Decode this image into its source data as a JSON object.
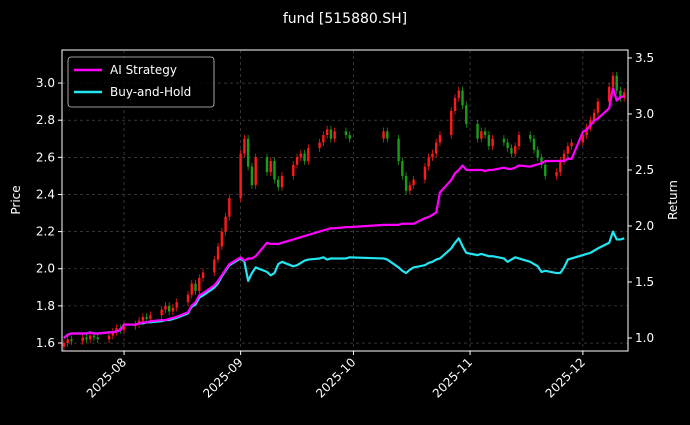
{
  "chart_data": {
    "type": "candlestick",
    "title": "fund [515880.SH]",
    "ylabel": "Price",
    "y2label": "Return",
    "x": [
      0,
      1,
      2,
      5,
      6,
      7,
      8,
      9,
      12,
      13,
      14,
      15,
      16,
      19,
      20,
      21,
      22,
      23,
      26,
      27,
      28,
      29,
      30,
      33,
      34,
      35,
      36,
      37,
      40,
      41,
      42,
      43,
      44,
      47,
      48,
      49,
      50,
      51,
      54,
      55,
      56,
      57,
      58,
      61,
      62,
      63,
      64,
      65,
      68,
      69,
      70,
      71,
      72,
      75,
      76,
      85,
      86,
      89,
      90,
      91,
      92,
      93,
      96,
      97,
      98,
      99,
      100,
      103,
      104,
      105,
      106,
      107,
      110,
      111,
      112,
      113,
      114,
      117,
      118,
      119,
      120,
      121,
      124,
      125,
      126,
      127,
      128,
      131,
      132,
      133,
      134,
      135,
      138,
      139,
      140,
      141,
      142,
      145,
      146,
      147,
      148,
      149
    ],
    "open": [
      1.58,
      1.6,
      1.62,
      1.61,
      1.63,
      1.62,
      1.64,
      1.63,
      1.62,
      1.64,
      1.66,
      1.68,
      1.67,
      1.69,
      1.7,
      1.72,
      1.74,
      1.73,
      1.75,
      1.78,
      1.8,
      1.77,
      1.79,
      1.82,
      1.86,
      1.92,
      1.88,
      1.95,
      1.98,
      2.05,
      2.12,
      2.2,
      2.28,
      2.38,
      2.62,
      2.7,
      2.55,
      2.45,
      2.6,
      2.52,
      2.58,
      2.48,
      2.44,
      2.5,
      2.56,
      2.6,
      2.62,
      2.58,
      2.65,
      2.68,
      2.72,
      2.75,
      2.7,
      2.74,
      2.72,
      2.7,
      2.74,
      2.7,
      2.58,
      2.5,
      2.42,
      2.45,
      2.48,
      2.55,
      2.6,
      2.62,
      2.68,
      2.72,
      2.85,
      2.92,
      2.96,
      2.88,
      2.78,
      2.7,
      2.74,
      2.72,
      2.66,
      2.7,
      2.68,
      2.65,
      2.62,
      2.66,
      2.72,
      2.7,
      2.64,
      2.6,
      2.56,
      2.5,
      2.52,
      2.58,
      2.62,
      2.66,
      2.68,
      2.72,
      2.76,
      2.8,
      2.84,
      2.9,
      2.98,
      3.04,
      2.96,
      2.92
    ],
    "high": [
      1.62,
      1.64,
      1.64,
      1.65,
      1.65,
      1.66,
      1.66,
      1.65,
      1.66,
      1.68,
      1.7,
      1.7,
      1.71,
      1.72,
      1.74,
      1.76,
      1.76,
      1.77,
      1.8,
      1.82,
      1.82,
      1.81,
      1.84,
      1.88,
      1.94,
      1.94,
      1.97,
      2.0,
      2.07,
      2.14,
      2.22,
      2.3,
      2.4,
      2.64,
      2.72,
      2.72,
      2.57,
      2.62,
      2.62,
      2.6,
      2.6,
      2.5,
      2.52,
      2.58,
      2.62,
      2.64,
      2.64,
      2.67,
      2.7,
      2.74,
      2.77,
      2.77,
      2.76,
      2.76,
      2.74,
      2.76,
      2.76,
      2.72,
      2.6,
      2.52,
      2.47,
      2.5,
      2.57,
      2.62,
      2.64,
      2.7,
      2.74,
      2.87,
      2.94,
      2.98,
      2.98,
      2.9,
      2.8,
      2.76,
      2.76,
      2.74,
      2.72,
      2.72,
      2.7,
      2.67,
      2.68,
      2.74,
      2.74,
      2.72,
      2.66,
      2.62,
      2.58,
      2.54,
      2.6,
      2.64,
      2.68,
      2.7,
      2.74,
      2.78,
      2.82,
      2.86,
      2.92,
      3.0,
      3.06,
      3.06,
      2.98,
      2.97
    ],
    "low": [
      1.56,
      1.58,
      1.59,
      1.59,
      1.6,
      1.6,
      1.61,
      1.6,
      1.6,
      1.62,
      1.64,
      1.65,
      1.65,
      1.67,
      1.68,
      1.7,
      1.71,
      1.71,
      1.73,
      1.76,
      1.75,
      1.75,
      1.77,
      1.8,
      1.84,
      1.86,
      1.86,
      1.93,
      1.96,
      2.03,
      2.1,
      2.18,
      2.26,
      2.36,
      2.6,
      2.53,
      2.43,
      2.43,
      2.5,
      2.5,
      2.46,
      2.42,
      2.42,
      2.48,
      2.54,
      2.58,
      2.56,
      2.56,
      2.63,
      2.66,
      2.7,
      2.68,
      2.68,
      2.7,
      2.68,
      2.68,
      2.68,
      2.56,
      2.48,
      2.4,
      2.4,
      2.43,
      2.46,
      2.53,
      2.58,
      2.6,
      2.66,
      2.7,
      2.83,
      2.9,
      2.86,
      2.76,
      2.68,
      2.68,
      2.7,
      2.64,
      2.64,
      2.66,
      2.63,
      2.6,
      2.6,
      2.64,
      2.68,
      2.62,
      2.58,
      2.54,
      2.48,
      2.48,
      2.5,
      2.56,
      2.6,
      2.64,
      2.66,
      2.7,
      2.74,
      2.78,
      2.82,
      2.88,
      2.96,
      2.94,
      2.9,
      2.9
    ],
    "close": [
      1.6,
      1.62,
      1.61,
      1.63,
      1.62,
      1.64,
      1.63,
      1.62,
      1.64,
      1.66,
      1.68,
      1.67,
      1.69,
      1.7,
      1.72,
      1.74,
      1.73,
      1.75,
      1.78,
      1.8,
      1.77,
      1.79,
      1.82,
      1.86,
      1.92,
      1.88,
      1.95,
      1.98,
      2.05,
      2.12,
      2.2,
      2.28,
      2.38,
      2.62,
      2.7,
      2.55,
      2.45,
      2.6,
      2.52,
      2.58,
      2.48,
      2.44,
      2.5,
      2.56,
      2.6,
      2.62,
      2.58,
      2.65,
      2.68,
      2.72,
      2.75,
      2.7,
      2.74,
      2.72,
      2.7,
      2.74,
      2.7,
      2.58,
      2.5,
      2.42,
      2.45,
      2.48,
      2.55,
      2.6,
      2.62,
      2.68,
      2.72,
      2.85,
      2.92,
      2.96,
      2.88,
      2.78,
      2.7,
      2.74,
      2.72,
      2.66,
      2.7,
      2.68,
      2.65,
      2.62,
      2.66,
      2.72,
      2.7,
      2.64,
      2.6,
      2.56,
      2.5,
      2.52,
      2.58,
      2.62,
      2.66,
      2.68,
      2.72,
      2.76,
      2.8,
      2.84,
      2.9,
      2.98,
      3.04,
      2.96,
      2.92,
      2.95
    ],
    "up_color": "#ff1a1a",
    "down_color": "#1a9e1a",
    "series": [
      {
        "name": "AI Strategy",
        "color": "#ff00ff",
        "axis": "y2",
        "values": [
          1.0,
          1.03,
          1.04,
          1.04,
          1.04,
          1.05,
          1.04,
          1.04,
          1.05,
          1.05,
          1.06,
          1.07,
          1.12,
          1.12,
          1.13,
          1.14,
          1.14,
          1.15,
          1.16,
          1.16,
          1.17,
          1.18,
          1.19,
          1.23,
          1.29,
          1.32,
          1.38,
          1.4,
          1.47,
          1.51,
          1.56,
          1.61,
          1.66,
          1.72,
          1.69,
          1.71,
          1.71,
          1.73,
          1.85,
          1.84,
          1.84,
          1.84,
          1.85,
          1.88,
          1.89,
          1.9,
          1.91,
          1.92,
          1.95,
          1.96,
          1.97,
          1.98,
          1.98,
          1.99,
          1.99,
          2.01,
          2.01,
          2.01,
          2.02,
          2.02,
          2.02,
          2.02,
          2.07,
          2.08,
          2.1,
          2.12,
          2.3,
          2.41,
          2.47,
          2.5,
          2.54,
          2.5,
          2.5,
          2.5,
          2.49,
          2.5,
          2.5,
          2.52,
          2.51,
          2.51,
          2.52,
          2.54,
          2.53,
          2.54,
          2.55,
          2.56,
          2.58,
          2.58,
          2.58,
          2.58,
          2.6,
          2.6,
          2.84,
          2.86,
          2.9,
          2.94,
          2.96,
          3.05,
          3.23,
          3.12,
          3.15,
          3.16
        ]
      },
      {
        "name": "Buy-and-Hold",
        "color": "#22e6f2",
        "axis": "y2",
        "values": [
          1.0,
          1.03,
          1.04,
          1.04,
          1.04,
          1.05,
          1.04,
          1.04,
          1.05,
          1.05,
          1.06,
          1.07,
          1.12,
          1.12,
          1.13,
          1.13,
          1.14,
          1.14,
          1.15,
          1.16,
          1.16,
          1.17,
          1.18,
          1.22,
          1.28,
          1.3,
          1.36,
          1.38,
          1.45,
          1.49,
          1.55,
          1.6,
          1.65,
          1.71,
          1.68,
          1.51,
          1.58,
          1.63,
          1.59,
          1.56,
          1.58,
          1.66,
          1.68,
          1.64,
          1.65,
          1.67,
          1.69,
          1.7,
          1.71,
          1.72,
          1.7,
          1.71,
          1.71,
          1.71,
          1.72,
          1.71,
          1.7,
          1.63,
          1.6,
          1.58,
          1.61,
          1.63,
          1.65,
          1.67,
          1.68,
          1.7,
          1.71,
          1.8,
          1.85,
          1.89,
          1.82,
          1.76,
          1.74,
          1.75,
          1.74,
          1.73,
          1.73,
          1.71,
          1.68,
          1.7,
          1.72,
          1.71,
          1.68,
          1.66,
          1.64,
          1.59,
          1.6,
          1.58,
          1.58,
          1.63,
          1.7,
          1.71,
          1.74,
          1.75,
          1.76,
          1.78,
          1.8,
          1.85,
          1.95,
          1.88,
          1.88,
          1.89
        ]
      }
    ],
    "xlim": [
      -0.5,
      150
    ],
    "xticks": [
      {
        "value": 16,
        "label": "2025-08"
      },
      {
        "value": 47,
        "label": "2025-09"
      },
      {
        "value": 77,
        "label": "2025-10"
      },
      {
        "value": 108,
        "label": "2025-11"
      },
      {
        "value": 138,
        "label": "2025-12"
      }
    ],
    "ylim": [
      1.557,
      3.178
    ],
    "yticks": [
      1.6,
      1.8,
      {
        "value": 2,
        "label": "2.0"
      },
      2.2,
      2.4,
      2.6,
      2.8,
      {
        "value": 3,
        "label": "3.0"
      }
    ],
    "y2lim": [
      0.884,
      3.571
    ],
    "y2ticks": [
      {
        "value": 1,
        "label": "1.0"
      },
      1.5,
      {
        "value": 2,
        "label": "2.0"
      },
      2.5,
      {
        "value": 3,
        "label": "3.0"
      },
      3.5
    ],
    "grid": true,
    "legend": "upper left"
  }
}
